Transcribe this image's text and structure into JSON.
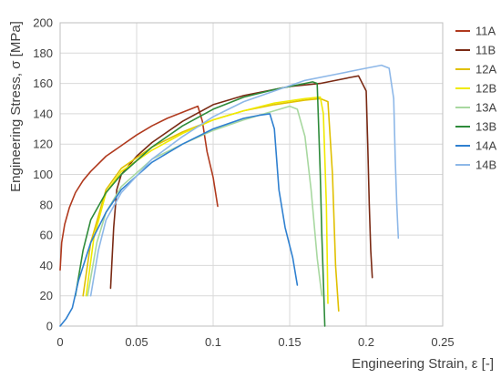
{
  "chart_data": {
    "type": "line",
    "title": "",
    "xlabel": "Engineering Strain, ε [-]",
    "ylabel": "Engineering Stress, σ [MPa]",
    "xlim": [
      0,
      0.25
    ],
    "ylim": [
      0,
      200
    ],
    "xticks": [
      "0",
      "0.05",
      "0.1",
      "0.15",
      "0.2",
      "0.25"
    ],
    "yticks": [
      "0",
      "20",
      "40",
      "60",
      "80",
      "100",
      "120",
      "140",
      "160",
      "180",
      "200"
    ],
    "grid": true,
    "legend_position": "right",
    "series": [
      {
        "name": "11A",
        "color": "#b03a1e",
        "x": [
          0,
          0.001,
          0.003,
          0.006,
          0.01,
          0.015,
          0.02,
          0.03,
          0.04,
          0.05,
          0.06,
          0.07,
          0.08,
          0.09,
          0.093,
          0.096,
          0.1,
          0.103
        ],
        "y": [
          37,
          55,
          67,
          78,
          88,
          96,
          102,
          112,
          119,
          126,
          132,
          137,
          141,
          145,
          135,
          115,
          98,
          79
        ]
      },
      {
        "name": "11B",
        "color": "#7a2a14",
        "x": [
          0.033,
          0.035,
          0.037,
          0.04,
          0.05,
          0.06,
          0.08,
          0.1,
          0.12,
          0.15,
          0.17,
          0.19,
          0.195,
          0.2,
          0.201,
          0.202,
          0.203,
          0.204
        ],
        "y": [
          25,
          65,
          90,
          100,
          112,
          121,
          135,
          146,
          152,
          158,
          160,
          164,
          165,
          155,
          120,
          80,
          50,
          32
        ]
      },
      {
        "name": "12A",
        "color": "#e0c000",
        "x": [
          0.015,
          0.02,
          0.03,
          0.04,
          0.06,
          0.08,
          0.1,
          0.12,
          0.14,
          0.16,
          0.17,
          0.175,
          0.178,
          0.18,
          0.182
        ],
        "y": [
          20,
          55,
          90,
          104,
          118,
          128,
          136,
          142,
          146,
          149,
          150,
          148,
          100,
          40,
          10
        ]
      },
      {
        "name": "12B",
        "color": "#f0ea00",
        "x": [
          0.017,
          0.022,
          0.03,
          0.04,
          0.06,
          0.08,
          0.1,
          0.12,
          0.14,
          0.16,
          0.17,
          0.172,
          0.174,
          0.175
        ],
        "y": [
          20,
          58,
          88,
          102,
          116,
          127,
          136,
          142,
          147,
          150,
          151,
          140,
          80,
          15
        ]
      },
      {
        "name": "13A",
        "color": "#a8d8a0",
        "x": [
          0.018,
          0.024,
          0.03,
          0.04,
          0.06,
          0.08,
          0.1,
          0.12,
          0.14,
          0.15,
          0.155,
          0.16,
          0.164,
          0.168,
          0.171
        ],
        "y": [
          20,
          55,
          75,
          92,
          110,
          120,
          129,
          136,
          142,
          145,
          143,
          125,
          90,
          45,
          20
        ]
      },
      {
        "name": "13B",
        "color": "#2e8b3a",
        "x": [
          0.01,
          0.015,
          0.02,
          0.03,
          0.04,
          0.06,
          0.08,
          0.1,
          0.12,
          0.14,
          0.16,
          0.165,
          0.168,
          0.169,
          0.17,
          0.171,
          0.172,
          0.173
        ],
        "y": [
          20,
          50,
          70,
          88,
          100,
          118,
          132,
          143,
          151,
          156,
          160,
          161,
          160,
          130,
          100,
          60,
          30,
          0
        ]
      },
      {
        "name": "14A",
        "color": "#2f80d0",
        "x": [
          0,
          0.004,
          0.008,
          0.012,
          0.02,
          0.03,
          0.04,
          0.06,
          0.08,
          0.1,
          0.12,
          0.13,
          0.137,
          0.14,
          0.143,
          0.147,
          0.152,
          0.155
        ],
        "y": [
          0,
          5,
          12,
          30,
          55,
          75,
          90,
          108,
          120,
          130,
          137,
          139,
          140,
          130,
          90,
          65,
          45,
          27
        ]
      },
      {
        "name": "14B",
        "color": "#8eb8e8",
        "x": [
          0.02,
          0.025,
          0.03,
          0.04,
          0.06,
          0.08,
          0.1,
          0.12,
          0.14,
          0.16,
          0.18,
          0.2,
          0.21,
          0.215,
          0.218,
          0.219,
          0.22,
          0.221
        ],
        "y": [
          20,
          50,
          70,
          88,
          110,
          125,
          138,
          148,
          155,
          162,
          166,
          170,
          172,
          170,
          150,
          110,
          80,
          58
        ]
      }
    ]
  }
}
